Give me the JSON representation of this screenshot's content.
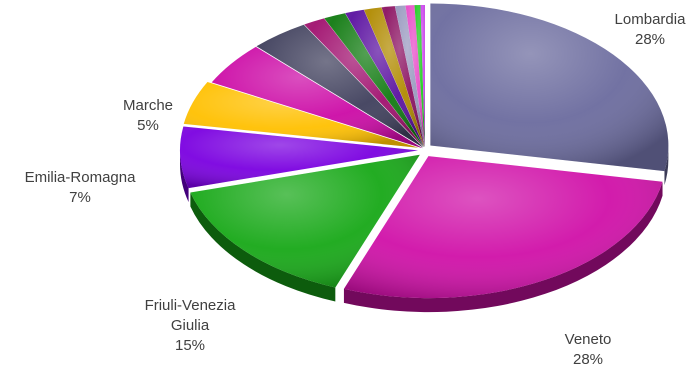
{
  "chart_data": {
    "type": "pie",
    "style": "3d-exploded",
    "slices": [
      {
        "label": "Lombardia",
        "value": 28,
        "value_label": "28%",
        "color": "#6b6b9e",
        "labeled": true
      },
      {
        "label": "Veneto",
        "value": 28,
        "value_label": "28%",
        "color": "#d010a8",
        "labeled": true
      },
      {
        "label": "Friuli-Venezia Giulia",
        "label_lines": [
          "Friuli-Venezia",
          "Giulia"
        ],
        "value": 15,
        "value_label": "15%",
        "color": "#17a817",
        "labeled": true
      },
      {
        "label": "Emilia-Romagna",
        "value": 7,
        "value_label": "7%",
        "color": "#7a00e0",
        "labeled": true
      },
      {
        "label": "Marche",
        "value": 5,
        "value_label": "5%",
        "color": "#ffc000",
        "labeled": true
      },
      {
        "label": "",
        "value": 5,
        "color": "#cc0aa6",
        "labeled": false
      },
      {
        "label": "",
        "value": 4,
        "color": "#3f3f5c",
        "labeled": false
      },
      {
        "label": "",
        "value": 1.5,
        "color": "#a0106e",
        "labeled": false
      },
      {
        "label": "",
        "value": 1.5,
        "color": "#107a10",
        "labeled": false
      },
      {
        "label": "",
        "value": 1.3,
        "color": "#5a10a0",
        "labeled": false
      },
      {
        "label": "",
        "value": 1.2,
        "color": "#b08a00",
        "labeled": false
      },
      {
        "label": "",
        "value": 0.9,
        "color": "#8a1060",
        "labeled": false
      },
      {
        "label": "",
        "value": 0.7,
        "color": "#9a9ac0",
        "labeled": false
      },
      {
        "label": "",
        "value": 0.6,
        "color": "#e84cc8",
        "labeled": false
      },
      {
        "label": "",
        "value": 0.4,
        "color": "#22cc22",
        "labeled": false
      },
      {
        "label": "",
        "value": 0.3,
        "color": "#cc44ee",
        "labeled": false
      }
    ]
  }
}
